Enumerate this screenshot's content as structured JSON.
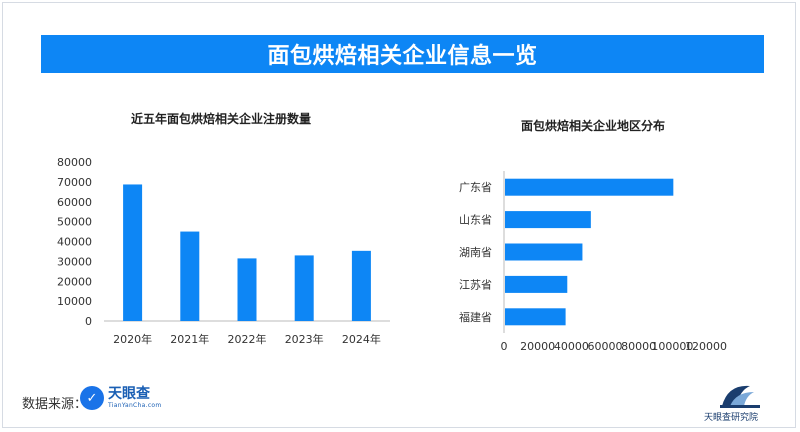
{
  "header": {
    "title": "面包烘焙相关企业信息一览"
  },
  "chart_data": [
    {
      "type": "bar",
      "title": "近五年面包烘焙相关企业注册数量",
      "categories": [
        "2020年",
        "2021年",
        "2022年",
        "2023年",
        "2024年"
      ],
      "values": [
        68700,
        45000,
        31500,
        33000,
        35300
      ],
      "ylim": [
        0,
        80000
      ],
      "yticks": [
        0,
        10000,
        20000,
        30000,
        40000,
        50000,
        60000,
        70000,
        80000
      ],
      "color": "#0d86f5",
      "grid": false
    },
    {
      "type": "bar",
      "orientation": "horizontal",
      "title": "面包烘焙相关企业地区分布",
      "categories": [
        "广东省",
        "山东省",
        "湖南省",
        "江苏省",
        "福建省"
      ],
      "values": [
        100000,
        51000,
        46000,
        37000,
        36000
      ],
      "xlim": [
        0,
        120000
      ],
      "xticks": [
        0,
        20000,
        40000,
        60000,
        80000,
        100000,
        120000
      ],
      "color": "#0d86f5",
      "grid": false
    }
  ],
  "footer": {
    "source_label": "数据来源：",
    "source_logo_name": "天眼查",
    "source_logo_sub": "TianYanCha.com",
    "publisher_name": "天眼查研究院"
  }
}
